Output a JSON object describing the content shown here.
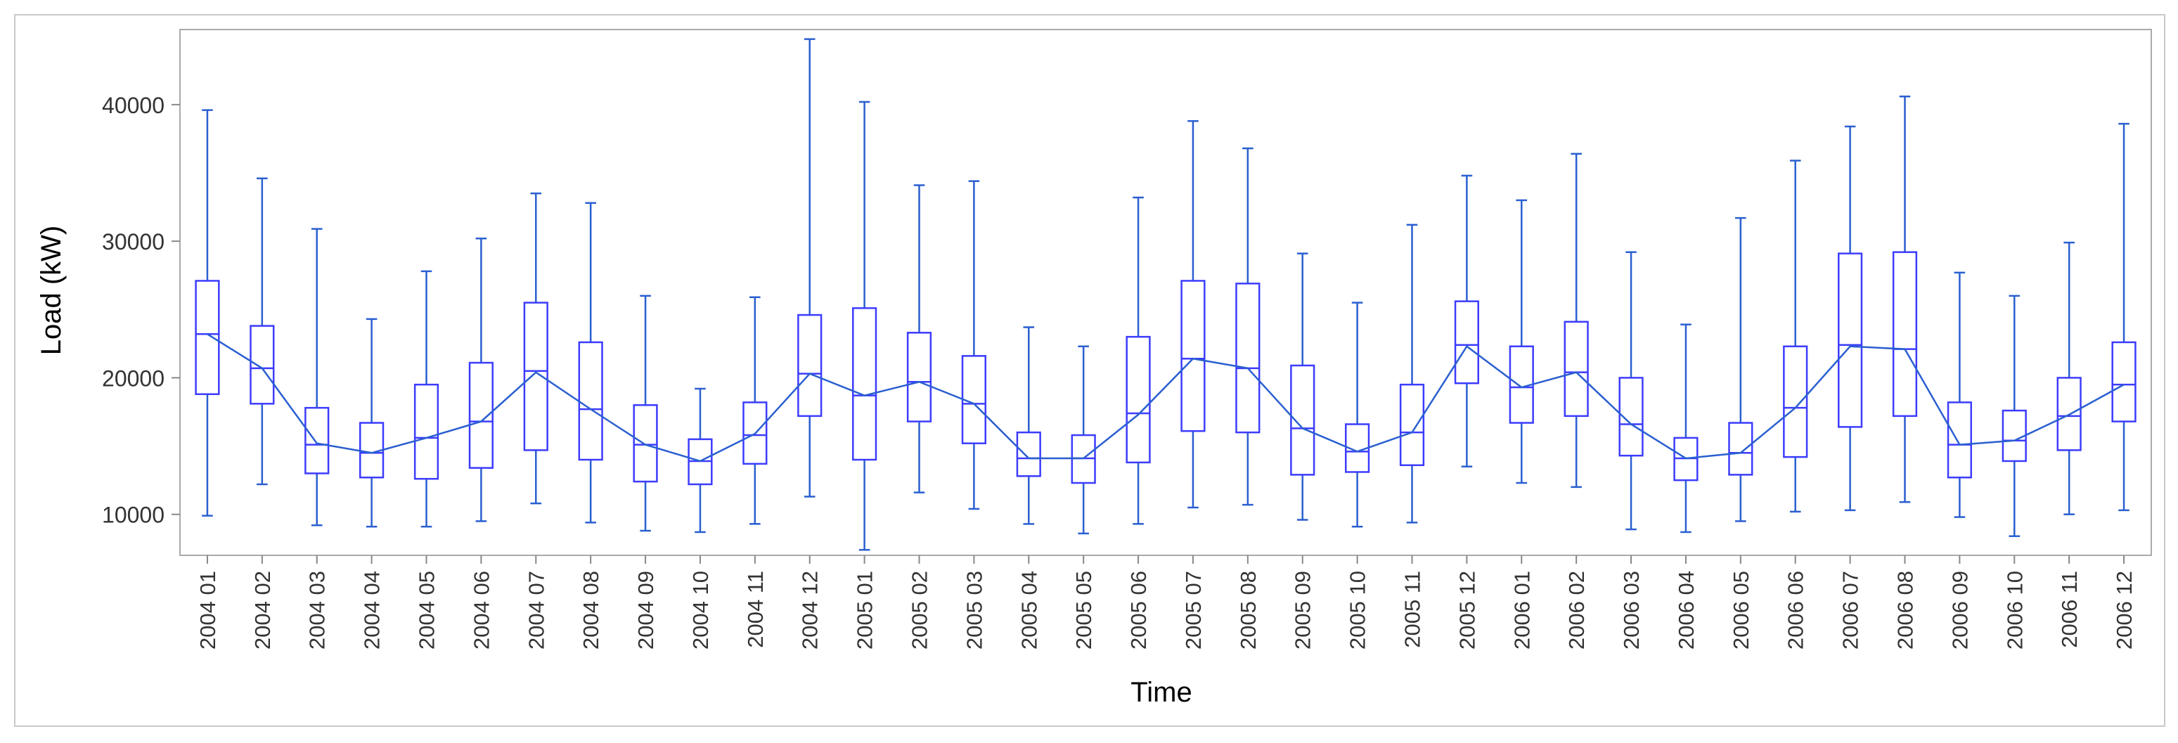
{
  "chart_data": {
    "type": "box",
    "xlabel": "Time",
    "ylabel": "Load (kW)",
    "ylim": [
      7000,
      45500
    ],
    "yticks": [
      10000,
      20000,
      30000,
      40000
    ],
    "grid": false,
    "colors": {
      "box": "#3c3cff",
      "whisker": "#2a5fd0",
      "line": "#2a5fd0",
      "frame": "#aaaaaa"
    },
    "categories": [
      "2004 01",
      "2004 02",
      "2004 03",
      "2004 04",
      "2004 05",
      "2004 06",
      "2004 07",
      "2004 08",
      "2004 09",
      "2004 10",
      "2004 11",
      "2004 12",
      "2005 01",
      "2005 02",
      "2005 03",
      "2005 04",
      "2005 05",
      "2005 06",
      "2005 07",
      "2005 08",
      "2005 09",
      "2005 10",
      "2005 11",
      "2005 12",
      "2006 01",
      "2006 02",
      "2006 03",
      "2006 04",
      "2006 05",
      "2006 06",
      "2006 07",
      "2006 08",
      "2006 09",
      "2006 10",
      "2006 11",
      "2006 12"
    ],
    "boxes": [
      {
        "min": 9900,
        "q1": 18800,
        "median": 23200,
        "q3": 27100,
        "max": 39600
      },
      {
        "min": 12200,
        "q1": 18100,
        "median": 20700,
        "q3": 23800,
        "max": 34600
      },
      {
        "min": 9200,
        "q1": 13000,
        "median": 15100,
        "q3": 17800,
        "max": 30900
      },
      {
        "min": 9100,
        "q1": 12700,
        "median": 14500,
        "q3": 16700,
        "max": 24300
      },
      {
        "min": 9100,
        "q1": 12600,
        "median": 15600,
        "q3": 19500,
        "max": 27800
      },
      {
        "min": 9500,
        "q1": 13400,
        "median": 16800,
        "q3": 21100,
        "max": 30200
      },
      {
        "min": 10800,
        "q1": 14700,
        "median": 20500,
        "q3": 25500,
        "max": 33500
      },
      {
        "min": 9400,
        "q1": 14000,
        "median": 17700,
        "q3": 22600,
        "max": 32800
      },
      {
        "min": 8800,
        "q1": 12400,
        "median": 15100,
        "q3": 18000,
        "max": 26000
      },
      {
        "min": 8700,
        "q1": 12200,
        "median": 13900,
        "q3": 15500,
        "max": 19200
      },
      {
        "min": 9300,
        "q1": 13700,
        "median": 15800,
        "q3": 18200,
        "max": 25900
      },
      {
        "min": 11300,
        "q1": 17200,
        "median": 20300,
        "q3": 24600,
        "max": 44800
      },
      {
        "min": 7400,
        "q1": 14000,
        "median": 18700,
        "q3": 25100,
        "max": 40200
      },
      {
        "min": 11600,
        "q1": 16800,
        "median": 19700,
        "q3": 23300,
        "max": 34100
      },
      {
        "min": 10400,
        "q1": 15200,
        "median": 18100,
        "q3": 21600,
        "max": 34400
      },
      {
        "min": 9300,
        "q1": 12800,
        "median": 14100,
        "q3": 16000,
        "max": 23700
      },
      {
        "min": 8600,
        "q1": 12300,
        "median": 14100,
        "q3": 15800,
        "max": 22300
      },
      {
        "min": 9300,
        "q1": 13800,
        "median": 17400,
        "q3": 23000,
        "max": 33200
      },
      {
        "min": 10500,
        "q1": 16100,
        "median": 21400,
        "q3": 27100,
        "max": 38800
      },
      {
        "min": 10700,
        "q1": 16000,
        "median": 20700,
        "q3": 26900,
        "max": 36800
      },
      {
        "min": 9600,
        "q1": 12900,
        "median": 16300,
        "q3": 20900,
        "max": 29100
      },
      {
        "min": 9100,
        "q1": 13100,
        "median": 14600,
        "q3": 16600,
        "max": 25500
      },
      {
        "min": 9400,
        "q1": 13600,
        "median": 16000,
        "q3": 19500,
        "max": 31200
      },
      {
        "min": 13500,
        "q1": 19600,
        "median": 22400,
        "q3": 25600,
        "max": 34800
      },
      {
        "min": 12300,
        "q1": 16700,
        "median": 19300,
        "q3": 22300,
        "max": 33000
      },
      {
        "min": 12000,
        "q1": 17200,
        "median": 20400,
        "q3": 24100,
        "max": 36400
      },
      {
        "min": 8900,
        "q1": 14300,
        "median": 16600,
        "q3": 20000,
        "max": 29200
      },
      {
        "min": 8700,
        "q1": 12500,
        "median": 14100,
        "q3": 15600,
        "max": 23900
      },
      {
        "min": 9500,
        "q1": 12900,
        "median": 14500,
        "q3": 16700,
        "max": 31700
      },
      {
        "min": 10200,
        "q1": 14200,
        "median": 17800,
        "q3": 22300,
        "max": 35900
      },
      {
        "min": 10300,
        "q1": 16400,
        "median": 22400,
        "q3": 29100,
        "max": 38400
      },
      {
        "min": 10900,
        "q1": 17200,
        "median": 22100,
        "q3": 29200,
        "max": 40600
      },
      {
        "min": 9800,
        "q1": 12700,
        "median": 15100,
        "q3": 18200,
        "max": 27700
      },
      {
        "min": 8400,
        "q1": 13900,
        "median": 15400,
        "q3": 17600,
        "max": 26000
      },
      {
        "min": 10000,
        "q1": 14700,
        "median": 17200,
        "q3": 20000,
        "max": 29900
      },
      {
        "min": 10300,
        "q1": 16800,
        "median": 19500,
        "q3": 22600,
        "max": 38600
      }
    ],
    "mean_line": {
      "values": [
        23200,
        20700,
        15200,
        14500,
        15600,
        16800,
        20400,
        17700,
        15100,
        13900,
        15900,
        20300,
        18700,
        19700,
        18100,
        14100,
        14100,
        17300,
        21400,
        20700,
        16300,
        14600,
        16000,
        22300,
        19300,
        20400,
        16600,
        14100,
        14500,
        17800,
        22300,
        22100,
        15100,
        15400,
        17300,
        19500
      ]
    }
  }
}
